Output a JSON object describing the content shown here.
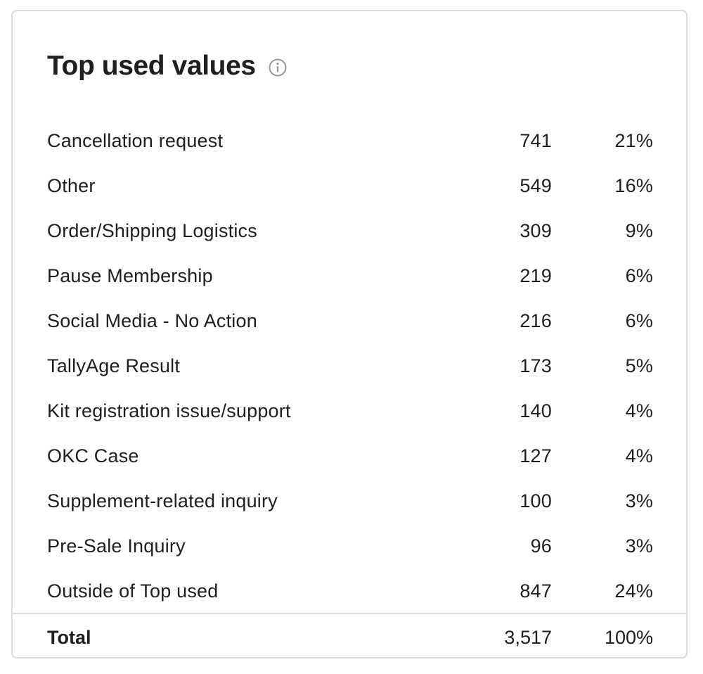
{
  "card": {
    "title": "Top used values",
    "info_icon": "info-circle-icon"
  },
  "rows": [
    {
      "label": "Cancellation request",
      "count": "741",
      "percent": "21%"
    },
    {
      "label": "Other",
      "count": "549",
      "percent": "16%"
    },
    {
      "label": "Order/Shipping Logistics",
      "count": "309",
      "percent": "9%"
    },
    {
      "label": "Pause Membership",
      "count": "219",
      "percent": "6%"
    },
    {
      "label": "Social Media - No Action",
      "count": "216",
      "percent": "6%"
    },
    {
      "label": "TallyAge Result",
      "count": "173",
      "percent": "5%"
    },
    {
      "label": "Kit registration issue/support",
      "count": "140",
      "percent": "4%"
    },
    {
      "label": "OKC Case",
      "count": "127",
      "percent": "4%"
    },
    {
      "label": "Supplement-related inquiry",
      "count": "100",
      "percent": "3%"
    },
    {
      "label": "Pre-Sale Inquiry",
      "count": "96",
      "percent": "3%"
    },
    {
      "label": "Outside of Top used",
      "count": "847",
      "percent": "24%"
    }
  ],
  "total": {
    "label": "Total",
    "count": "3,517",
    "percent": "100%"
  },
  "colors": {
    "text": "#1f1f1f",
    "border": "#dcdcdc",
    "icon": "#9a9a9a"
  }
}
